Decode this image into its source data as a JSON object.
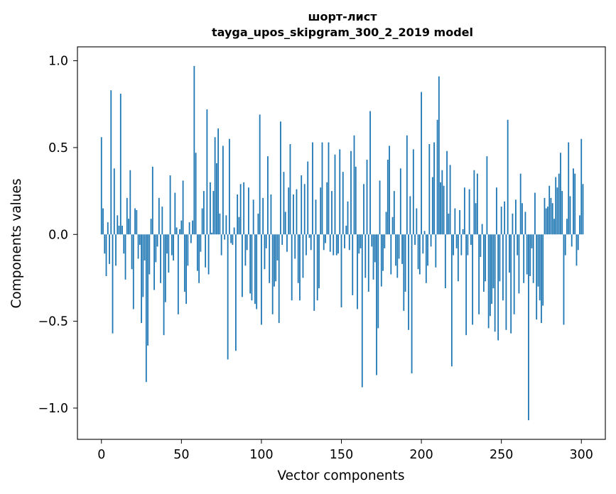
{
  "chart_data": {
    "type": "bar",
    "title_line1": "шорт-лист",
    "title_line2": "tayga_upos_skipgram_300_2_2019 model",
    "xlabel": "Vector components",
    "ylabel": "Components values",
    "xlim": [
      -15,
      315
    ],
    "ylim": [
      -1.18,
      1.08
    ],
    "xticks": [
      0,
      50,
      100,
      150,
      200,
      250,
      300
    ],
    "xtick_labels": [
      "0",
      "50",
      "100",
      "150",
      "200",
      "250",
      "300"
    ],
    "yticks": [
      -1.0,
      -0.5,
      0.0,
      0.5,
      1.0
    ],
    "ytick_labels": [
      "−1.0",
      "−0.5",
      "0.0",
      "0.5",
      "1.0"
    ],
    "bar_color": "#1f77b4",
    "values": [
      0.56,
      0.15,
      -0.11,
      -0.24,
      0.07,
      -0.17,
      0.83,
      -0.57,
      0.38,
      -0.18,
      0.11,
      0.05,
      0.81,
      0.05,
      -0.11,
      -0.26,
      0.21,
      0.09,
      0.37,
      -0.2,
      -0.43,
      0.15,
      0.14,
      -0.14,
      -0.06,
      -0.51,
      -0.36,
      -0.15,
      -0.85,
      -0.64,
      -0.23,
      0.09,
      0.39,
      -0.32,
      -0.16,
      -0.07,
      0.21,
      -0.28,
      0.16,
      -0.58,
      -0.39,
      -0.11,
      -0.22,
      0.34,
      -0.12,
      -0.15,
      0.24,
      0.04,
      -0.46,
      0.03,
      0.08,
      0.31,
      -0.33,
      -0.4,
      -0.18,
      0.07,
      -0.05,
      0.08,
      0.97,
      0.47,
      -0.21,
      -0.28,
      -0.1,
      0.15,
      0.25,
      -0.19,
      0.72,
      -0.23,
      0.3,
      0.01,
      0.25,
      0.56,
      0.41,
      0.61,
      0.12,
      -0.12,
      0.51,
      -0.03,
      0.11,
      -0.72,
      0.55,
      -0.05,
      -0.06,
      0.04,
      -0.67,
      0.23,
      0.1,
      0.29,
      -0.36,
      0.3,
      -0.18,
      -0.09,
      0.27,
      -0.34,
      -0.38,
      0.2,
      -0.4,
      -0.43,
      0.12,
      0.69,
      -0.52,
      0.21,
      -0.2,
      -0.08,
      0.45,
      -0.28,
      0.23,
      -0.46,
      -0.3,
      -0.27,
      -0.15,
      -0.51,
      0.65,
      -0.06,
      0.36,
      0.13,
      -0.1,
      0.27,
      0.52,
      -0.38,
      0.23,
      -0.14,
      0.26,
      -0.28,
      -0.38,
      0.34,
      -0.25,
      0.29,
      -0.12,
      0.42,
      -0.02,
      -0.09,
      0.53,
      -0.44,
      0.2,
      -0.38,
      -0.31,
      0.27,
      0.53,
      -0.09,
      -0.05,
      0.3,
      0.53,
      -0.1,
      0.25,
      -0.12,
      0.46,
      -0.12,
      -0.11,
      0.49,
      -0.42,
      0.36,
      -0.08,
      0.05,
      0.19,
      -0.09,
      0.48,
      -0.35,
      0.57,
      0.39,
      -0.43,
      -0.11,
      -0.08,
      -0.88,
      0.29,
      -0.25,
      0.43,
      -0.33,
      0.71,
      -0.07,
      -0.26,
      -0.16,
      -0.81,
      -0.54,
      0.31,
      -0.3,
      -0.21,
      -0.08,
      0.13,
      0.43,
      0.51,
      -0.23,
      0.1,
      0.25,
      -0.18,
      -0.25,
      -0.14,
      0.38,
      -0.17,
      -0.44,
      -0.33,
      0.57,
      -0.55,
      0.22,
      -0.8,
      0.49,
      -0.06,
      0.15,
      -0.2,
      -0.23,
      0.82,
      -0.11,
      0.02,
      -0.28,
      -0.18,
      0.52,
      -0.07,
      0.33,
      0.53,
      -0.19,
      0.66,
      0.91,
      0.3,
      0.37,
      0.28,
      -0.31,
      0.48,
      0.12,
      0.4,
      -0.76,
      -0.12,
      0.15,
      -0.08,
      -0.27,
      0.14,
      -0.12,
      0.03,
      0.27,
      -0.58,
      -0.12,
      0.26,
      -0.06,
      -0.52,
      0.37,
      0.18,
      0.35,
      -0.46,
      -0.13,
      0.06,
      -0.33,
      -0.27,
      0.45,
      -0.54,
      -0.47,
      -0.4,
      -0.31,
      -0.56,
      0.27,
      -0.61,
      -0.27,
      0.16,
      -0.38,
      0.19,
      -0.55,
      0.66,
      -0.22,
      -0.57,
      0.12,
      -0.46,
      0.2,
      -0.12,
      -0.34,
      0.35,
      0.18,
      -0.28,
      0.13,
      -0.23,
      -1.07,
      -0.24,
      -0.08,
      -0.28,
      0.24,
      -0.49,
      -0.3,
      -0.38,
      -0.51,
      -0.41,
      0.21,
      0.15,
      0.16,
      0.28,
      0.21,
      0.18,
      0.09,
      0.33,
      0.27,
      0.35,
      0.47,
      0.25,
      -0.52,
      -0.12,
      0.09,
      0.53,
      0.22,
      -0.07,
      0.38,
      0.35,
      -0.18,
      -0.09,
      0.11,
      0.55,
      0.29
    ]
  }
}
